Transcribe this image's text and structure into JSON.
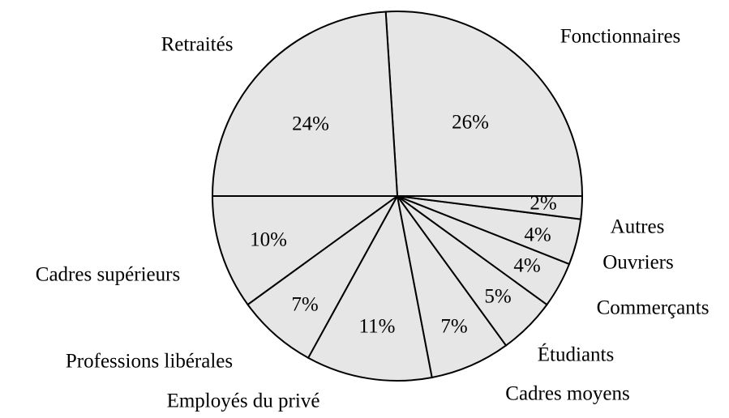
{
  "chart_data": {
    "type": "pie",
    "categories": [
      "Fonctionnaires",
      "Retraités",
      "Cadres supérieurs",
      "Professions libérales",
      "Employés du privé",
      "Cadres moyens",
      "Étudiants",
      "Commerçants",
      "Ouvriers",
      "Autres"
    ],
    "values": [
      26,
      24,
      10,
      7,
      11,
      7,
      5,
      4,
      4,
      2
    ],
    "value_labels": [
      "26%",
      "24%",
      "10%",
      "7%",
      "11%",
      "7%",
      "5%",
      "4%",
      "4%",
      "2%"
    ],
    "color": "#e6e6e6"
  }
}
